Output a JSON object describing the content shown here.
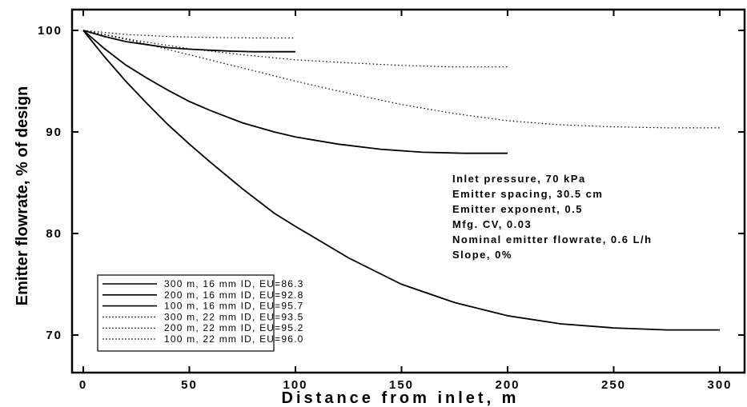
{
  "chart_data": {
    "type": "line",
    "title": "",
    "xlabel": "Distance from inlet, m",
    "ylabel": "Emitter flowrate, % of design",
    "xlim": [
      -5,
      310
    ],
    "ylim": [
      67,
      102
    ],
    "xticks": [
      0,
      50,
      100,
      150,
      200,
      250,
      300
    ],
    "yticks": [
      70,
      80,
      90,
      100
    ],
    "grid": false,
    "legend_position": "bottom-left",
    "annotations": [
      "Inlet pressure, 70 kPa",
      "Emitter spacing, 30.5 cm",
      "Emitter exponent, 0.5",
      "Mfg. CV, 0.03",
      "Nominal emitter flowrate, 0.6 L/h",
      "Slope, 0%"
    ],
    "series": [
      {
        "name": "300 m, 16 mm ID, EU=86.3",
        "style": "solid",
        "x": [
          0,
          10,
          20,
          30,
          40,
          50,
          60,
          75,
          90,
          100,
          125,
          150,
          175,
          200,
          225,
          250,
          275,
          300
        ],
        "y": [
          100,
          97.4,
          95.0,
          92.8,
          90.7,
          88.8,
          87.0,
          84.4,
          82.0,
          80.7,
          77.6,
          75.0,
          73.2,
          71.9,
          71.1,
          70.7,
          70.5,
          70.5
        ]
      },
      {
        "name": "200 m, 16 mm ID, EU=92.8",
        "style": "solid",
        "x": [
          0,
          10,
          20,
          30,
          40,
          50,
          60,
          75,
          90,
          100,
          120,
          140,
          160,
          180,
          200
        ],
        "y": [
          100,
          98.2,
          96.6,
          95.3,
          94.1,
          93.0,
          92.1,
          90.9,
          90.0,
          89.5,
          88.8,
          88.3,
          88.0,
          87.9,
          87.9
        ]
      },
      {
        "name": "100 m, 16 mm ID, EU=95.7",
        "style": "solid",
        "x": [
          0,
          10,
          20,
          30,
          40,
          50,
          60,
          70,
          80,
          90,
          100
        ],
        "y": [
          100,
          99.4,
          98.9,
          98.6,
          98.3,
          98.15,
          98.05,
          97.95,
          97.9,
          97.9,
          97.9
        ]
      },
      {
        "name": "300 m, 22 mm ID, EU=93.5",
        "style": "dotted",
        "x": [
          0,
          25,
          50,
          75,
          100,
          125,
          150,
          175,
          200,
          225,
          250,
          275,
          300
        ],
        "y": [
          100,
          98.9,
          97.6,
          96.3,
          95.0,
          93.8,
          92.7,
          91.8,
          91.1,
          90.7,
          90.5,
          90.4,
          90.4
        ]
      },
      {
        "name": "200 m, 22 mm ID, EU=95.2",
        "style": "dotted",
        "x": [
          0,
          25,
          50,
          75,
          100,
          125,
          150,
          175,
          200
        ],
        "y": [
          100,
          99.0,
          98.2,
          97.6,
          97.1,
          96.8,
          96.55,
          96.4,
          96.4
        ]
      },
      {
        "name": "100 m, 22 mm ID, EU=96.0",
        "style": "dotted",
        "x": [
          0,
          20,
          40,
          60,
          80,
          100
        ],
        "y": [
          100,
          99.6,
          99.4,
          99.3,
          99.25,
          99.25
        ]
      }
    ]
  }
}
